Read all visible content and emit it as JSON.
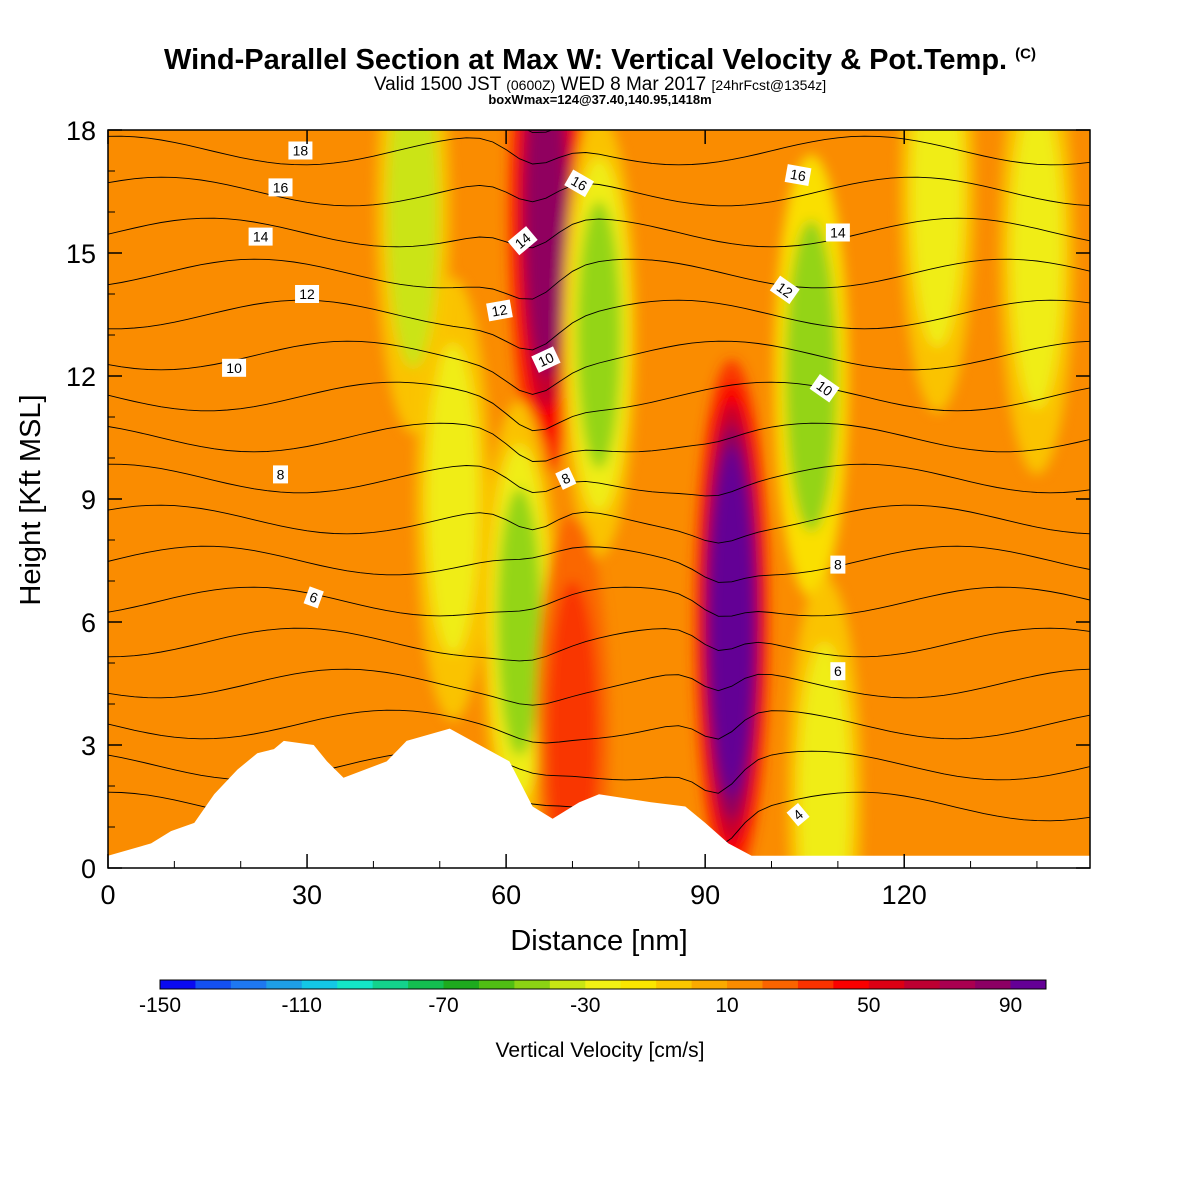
{
  "title": {
    "main": "Wind-Parallel Section at Max W: Vertical Velocity & Pot.Temp.",
    "copyright": "(C)",
    "valid_prefix": "Valid 1500 JST",
    "valid_utc": "(0600Z)",
    "valid_date": "WED 8 Mar 2017",
    "forecast": "[24hrFcst@1354z]",
    "box_info": "boxWmax=124@37.40,140.95,1418m"
  },
  "chart_data": {
    "type": "heatmap",
    "xlabel": "Distance [nm]",
    "ylabel": "Height [Kft MSL]",
    "xlim": [
      0,
      148
    ],
    "ylim": [
      0,
      18
    ],
    "x_ticks": [
      0,
      30,
      60,
      90,
      120
    ],
    "y_ticks": [
      0,
      3,
      6,
      9,
      12,
      15,
      18
    ],
    "grid": false,
    "colorbar": {
      "title": "Vertical Velocity [cm/s]",
      "range": [
        -150,
        110
      ],
      "step": 10,
      "tick_labels": [
        -150,
        -110,
        -70,
        -30,
        10,
        50,
        90
      ],
      "colors": [
        "#0a0af0",
        "#1450f0",
        "#1e78f0",
        "#1e9ee6",
        "#14c8e6",
        "#14e6c8",
        "#14d28c",
        "#14be50",
        "#1eaa1e",
        "#50be14",
        "#8cd214",
        "#c8e614",
        "#f0f014",
        "#fae600",
        "#fac800",
        "#faaa00",
        "#fa8c00",
        "#fa6400",
        "#fa3200",
        "#fa0000",
        "#dc0014",
        "#be0032",
        "#aa0050",
        "#8c0064",
        "#640096"
      ]
    },
    "vertical_velocity_features": [
      {
        "x": 94,
        "y": 6,
        "value": 115,
        "sign": "up"
      },
      {
        "x": 66,
        "y": 16,
        "value": 80,
        "sign": "up"
      },
      {
        "x": 74,
        "y": 13,
        "value": -50,
        "sign": "down"
      },
      {
        "x": 62,
        "y": 6,
        "value": -50,
        "sign": "down"
      },
      {
        "x": 106,
        "y": 12,
        "value": -45,
        "sign": "down"
      },
      {
        "x": 52,
        "y": 9,
        "value": -30,
        "sign": "down"
      },
      {
        "x": 46,
        "y": 16,
        "value": -35,
        "sign": "down"
      },
      {
        "x": 108,
        "y": 1.7,
        "value": -30,
        "sign": "down"
      },
      {
        "x": 140,
        "y": 15,
        "value": -25,
        "sign": "down"
      },
      {
        "x": 125,
        "y": 16.5,
        "value": -25,
        "sign": "down"
      },
      {
        "x": 70,
        "y": 3.2,
        "value": 30,
        "sign": "up"
      }
    ],
    "theta_contours": {
      "levels": [
        2,
        3,
        4,
        5,
        6,
        7,
        8,
        9,
        10,
        11,
        12,
        13,
        14,
        15,
        16,
        17,
        18,
        19
      ],
      "labels": [
        {
          "text": "18",
          "x": 29,
          "y": 17.5,
          "rotate": 0
        },
        {
          "text": "16",
          "x": 26,
          "y": 16.6,
          "rotate": 0
        },
        {
          "text": "14",
          "x": 23,
          "y": 15.4,
          "rotate": 0
        },
        {
          "text": "12",
          "x": 30,
          "y": 14.0,
          "rotate": 0
        },
        {
          "text": "10",
          "x": 19,
          "y": 12.2,
          "rotate": 0
        },
        {
          "text": "8",
          "x": 26,
          "y": 9.6,
          "rotate": 0
        },
        {
          "text": "6",
          "x": 31,
          "y": 6.6,
          "rotate": 20
        },
        {
          "text": "16",
          "x": 71,
          "y": 16.7,
          "rotate": 30
        },
        {
          "text": "14",
          "x": 62.5,
          "y": 15.3,
          "rotate": -40
        },
        {
          "text": "12",
          "x": 59,
          "y": 13.6,
          "rotate": -10
        },
        {
          "text": "10",
          "x": 66,
          "y": 12.4,
          "rotate": -25
        },
        {
          "text": "8",
          "x": 69,
          "y": 9.5,
          "rotate": -25
        },
        {
          "text": "16",
          "x": 104,
          "y": 16.9,
          "rotate": 10
        },
        {
          "text": "14",
          "x": 110,
          "y": 15.5,
          "rotate": 0
        },
        {
          "text": "12",
          "x": 102,
          "y": 14.1,
          "rotate": 35
        },
        {
          "text": "10",
          "x": 108,
          "y": 11.7,
          "rotate": 35
        },
        {
          "text": "8",
          "x": 110,
          "y": 7.4,
          "rotate": 0
        },
        {
          "text": "6",
          "x": 110,
          "y": 4.8,
          "rotate": 0
        },
        {
          "text": "4",
          "x": 104,
          "y": 1.3,
          "rotate": -40
        }
      ]
    },
    "terrain": [
      [
        0,
        0.3
      ],
      [
        6.5,
        0.6
      ],
      [
        9.5,
        0.9
      ],
      [
        13,
        1.1
      ],
      [
        16,
        1.8
      ],
      [
        19.5,
        2.4
      ],
      [
        22.5,
        2.8
      ],
      [
        25,
        2.9
      ],
      [
        26.5,
        3.1
      ],
      [
        31,
        3.0
      ],
      [
        33,
        2.6
      ],
      [
        35.5,
        2.2
      ],
      [
        42,
        2.6
      ],
      [
        45,
        3.1
      ],
      [
        51.5,
        3.4
      ],
      [
        60.5,
        2.6
      ],
      [
        64,
        1.5
      ],
      [
        67,
        1.2
      ],
      [
        71,
        1.6
      ],
      [
        74,
        1.8
      ],
      [
        82,
        1.6
      ],
      [
        87,
        1.5
      ],
      [
        90,
        1.1
      ],
      [
        93.5,
        0.6
      ],
      [
        97,
        0.3
      ],
      [
        148,
        0.3
      ]
    ]
  }
}
